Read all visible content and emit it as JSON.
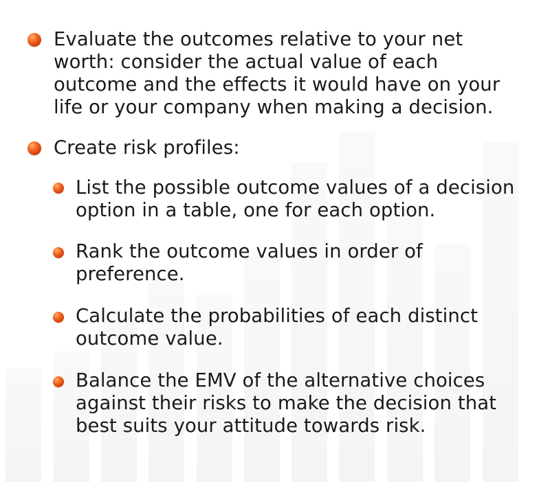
{
  "bullets": {
    "item1": "Evaluate the outcomes relative to your net worth: consider the actual value of each outcome and the effects it would have on your life or your company when making a decision.",
    "item2": "Create risk profiles:",
    "sub1": "List the possible outcome values of a decision option in a table, one for each option.",
    "sub2": "Rank the outcome values in order of preference.",
    "sub3": "Calculate the probabilities of each distinct outcome value.",
    "sub4": "Balance the EMV of the alternative choices against their risks to make the decision that best suits your attitude towards risk."
  },
  "bullet_icon": "orange-sphere-bullet-icon",
  "colors": {
    "bullet": "#e8541a",
    "text": "#1a1a1a"
  }
}
